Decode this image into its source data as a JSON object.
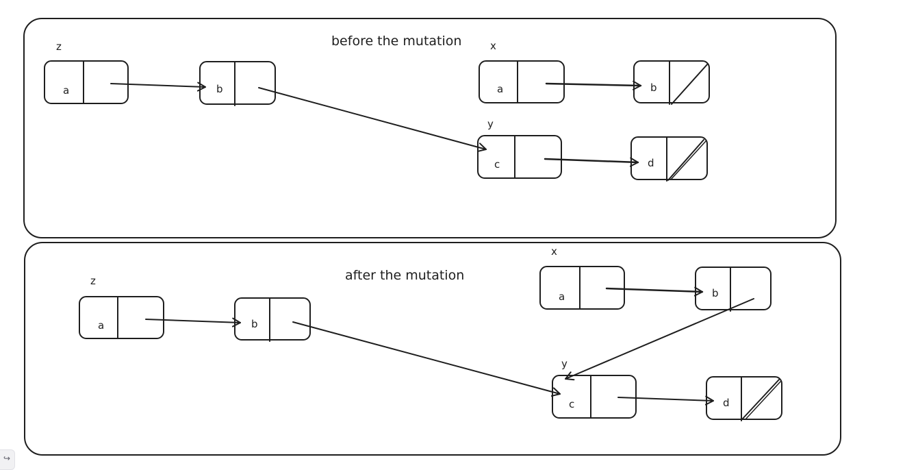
{
  "panels": [
    {
      "title": "before the mutation",
      "variables": [
        {
          "label": "z"
        },
        {
          "label": "x"
        },
        {
          "label": "y"
        }
      ],
      "nodes": [
        {
          "value": "a",
          "null_next": false
        },
        {
          "value": "b",
          "null_next": false
        },
        {
          "value": "a",
          "null_next": false
        },
        {
          "value": "b",
          "null_next": true
        },
        {
          "value": "c",
          "null_next": false
        },
        {
          "value": "d",
          "null_next": true
        }
      ]
    },
    {
      "title": "after the mutation",
      "variables": [
        {
          "label": "z"
        },
        {
          "label": "x"
        },
        {
          "label": "y"
        }
      ],
      "nodes": [
        {
          "value": "a",
          "null_next": false
        },
        {
          "value": "b",
          "null_next": false
        },
        {
          "value": "a",
          "null_next": false
        },
        {
          "value": "b",
          "null_next": false
        },
        {
          "value": "c",
          "null_next": false
        },
        {
          "value": "d",
          "null_next": true
        }
      ]
    }
  ],
  "corner_button": {
    "icon": "redo-arrow-icon",
    "glyph": "↪"
  }
}
